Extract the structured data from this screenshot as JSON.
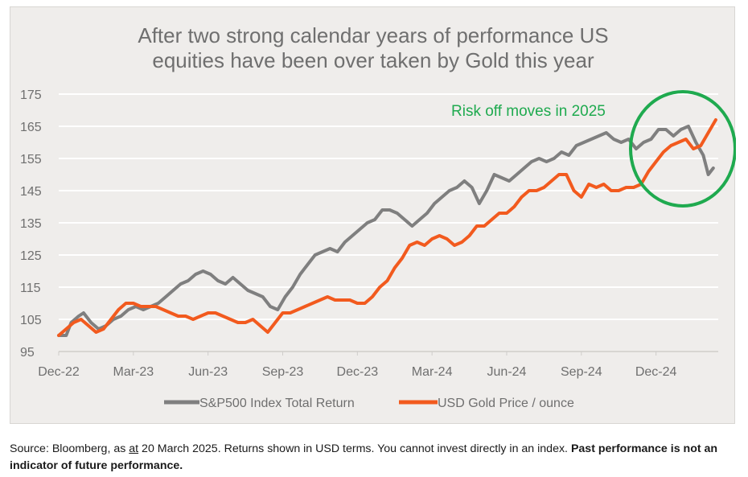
{
  "chart_data": {
    "type": "line",
    "title": [
      "After two strong calendar years of performance US",
      "equities have been over taken by Gold this year"
    ],
    "xlabel": "",
    "ylabel": "",
    "ylim": [
      95,
      175
    ],
    "yticks": [
      "175",
      "165",
      "155",
      "145",
      "135",
      "125",
      "115",
      "105",
      "95"
    ],
    "xticks": [
      "Dec-22",
      "Mar-23",
      "Jun-23",
      "Sep-23",
      "Dec-23",
      "Mar-24",
      "Jun-24",
      "Sep-24",
      "Dec-24"
    ],
    "grid": "horizontal",
    "legend_position": "bottom",
    "annotation": "Risk off moves in 2025",
    "x_month_index_note_free": true,
    "series": [
      {
        "name": "S&P500 Index Total Return",
        "color": "#7f7f7f",
        "points": [
          [
            0,
            100
          ],
          [
            0.3,
            100
          ],
          [
            0.5,
            104
          ],
          [
            0.8,
            106
          ],
          [
            1.0,
            107
          ],
          [
            1.3,
            104
          ],
          [
            1.6,
            102
          ],
          [
            1.9,
            103
          ],
          [
            2.2,
            105
          ],
          [
            2.5,
            106
          ],
          [
            2.8,
            108
          ],
          [
            3.1,
            109
          ],
          [
            3.4,
            108
          ],
          [
            3.7,
            109
          ],
          [
            4.0,
            110
          ],
          [
            4.3,
            112
          ],
          [
            4.6,
            114
          ],
          [
            4.9,
            116
          ],
          [
            5.2,
            117
          ],
          [
            5.5,
            119
          ],
          [
            5.8,
            120
          ],
          [
            6.1,
            119
          ],
          [
            6.4,
            117
          ],
          [
            6.7,
            116
          ],
          [
            7.0,
            118
          ],
          [
            7.3,
            116
          ],
          [
            7.6,
            114
          ],
          [
            7.9,
            113
          ],
          [
            8.2,
            112
          ],
          [
            8.5,
            109
          ],
          [
            8.8,
            108
          ],
          [
            9.1,
            112
          ],
          [
            9.4,
            115
          ],
          [
            9.7,
            119
          ],
          [
            10.0,
            122
          ],
          [
            10.3,
            125
          ],
          [
            10.6,
            126
          ],
          [
            10.9,
            127
          ],
          [
            11.2,
            126
          ],
          [
            11.5,
            129
          ],
          [
            11.8,
            131
          ],
          [
            12.1,
            133
          ],
          [
            12.4,
            135
          ],
          [
            12.7,
            136
          ],
          [
            13.0,
            139
          ],
          [
            13.3,
            139
          ],
          [
            13.6,
            138
          ],
          [
            13.9,
            136
          ],
          [
            14.2,
            134
          ],
          [
            14.5,
            136
          ],
          [
            14.8,
            138
          ],
          [
            15.1,
            141
          ],
          [
            15.4,
            143
          ],
          [
            15.7,
            145
          ],
          [
            16.0,
            146
          ],
          [
            16.3,
            148
          ],
          [
            16.6,
            146
          ],
          [
            16.9,
            141
          ],
          [
            17.2,
            145
          ],
          [
            17.5,
            150
          ],
          [
            17.8,
            149
          ],
          [
            18.1,
            148
          ],
          [
            18.4,
            150
          ],
          [
            18.7,
            152
          ],
          [
            19.0,
            154
          ],
          [
            19.3,
            155
          ],
          [
            19.6,
            154
          ],
          [
            19.9,
            155
          ],
          [
            20.2,
            157
          ],
          [
            20.5,
            156
          ],
          [
            20.8,
            159
          ],
          [
            21.1,
            160
          ],
          [
            21.4,
            161
          ],
          [
            21.7,
            162
          ],
          [
            22.0,
            163
          ],
          [
            22.3,
            161
          ],
          [
            22.6,
            160
          ],
          [
            22.9,
            161
          ],
          [
            23.2,
            158
          ],
          [
            23.5,
            160
          ],
          [
            23.8,
            161
          ],
          [
            24.1,
            164
          ],
          [
            24.4,
            164
          ],
          [
            24.7,
            162
          ],
          [
            25.0,
            164
          ],
          [
            25.3,
            165
          ],
          [
            25.6,
            160
          ],
          [
            25.9,
            156
          ],
          [
            26.1,
            150
          ],
          [
            26.3,
            152
          ]
        ]
      },
      {
        "name": "USD Gold Price / ounce",
        "color": "#f25a1e",
        "points": [
          [
            0,
            100
          ],
          [
            0.3,
            102
          ],
          [
            0.6,
            104
          ],
          [
            0.9,
            105
          ],
          [
            1.2,
            103
          ],
          [
            1.5,
            101
          ],
          [
            1.8,
            102
          ],
          [
            2.1,
            105
          ],
          [
            2.4,
            108
          ],
          [
            2.7,
            110
          ],
          [
            3.0,
            110
          ],
          [
            3.3,
            109
          ],
          [
            3.6,
            109
          ],
          [
            3.9,
            109
          ],
          [
            4.2,
            108
          ],
          [
            4.5,
            107
          ],
          [
            4.8,
            106
          ],
          [
            5.1,
            106
          ],
          [
            5.4,
            105
          ],
          [
            5.7,
            106
          ],
          [
            6.0,
            107
          ],
          [
            6.3,
            107
          ],
          [
            6.6,
            106
          ],
          [
            6.9,
            105
          ],
          [
            7.2,
            104
          ],
          [
            7.5,
            104
          ],
          [
            7.8,
            105
          ],
          [
            8.1,
            103
          ],
          [
            8.4,
            101
          ],
          [
            8.7,
            104
          ],
          [
            9.0,
            107
          ],
          [
            9.3,
            107
          ],
          [
            9.6,
            108
          ],
          [
            9.9,
            109
          ],
          [
            10.2,
            110
          ],
          [
            10.5,
            111
          ],
          [
            10.8,
            112
          ],
          [
            11.1,
            111
          ],
          [
            11.4,
            111
          ],
          [
            11.7,
            111
          ],
          [
            12.0,
            110
          ],
          [
            12.3,
            110
          ],
          [
            12.6,
            112
          ],
          [
            12.9,
            115
          ],
          [
            13.2,
            117
          ],
          [
            13.5,
            121
          ],
          [
            13.8,
            124
          ],
          [
            14.1,
            128
          ],
          [
            14.4,
            129
          ],
          [
            14.7,
            128
          ],
          [
            15.0,
            130
          ],
          [
            15.3,
            131
          ],
          [
            15.6,
            130
          ],
          [
            15.9,
            128
          ],
          [
            16.2,
            129
          ],
          [
            16.5,
            131
          ],
          [
            16.8,
            134
          ],
          [
            17.1,
            134
          ],
          [
            17.4,
            136
          ],
          [
            17.7,
            138
          ],
          [
            18.0,
            138
          ],
          [
            18.3,
            140
          ],
          [
            18.6,
            143
          ],
          [
            18.9,
            145
          ],
          [
            19.2,
            145
          ],
          [
            19.5,
            146
          ],
          [
            19.8,
            148
          ],
          [
            20.1,
            150
          ],
          [
            20.4,
            150
          ],
          [
            20.7,
            145
          ],
          [
            21.0,
            143
          ],
          [
            21.3,
            147
          ],
          [
            21.6,
            146
          ],
          [
            21.9,
            147
          ],
          [
            22.2,
            145
          ],
          [
            22.5,
            145
          ],
          [
            22.8,
            146
          ],
          [
            23.1,
            146
          ],
          [
            23.4,
            147
          ],
          [
            23.7,
            151
          ],
          [
            24.0,
            154
          ],
          [
            24.3,
            157
          ],
          [
            24.6,
            159
          ],
          [
            24.9,
            160
          ],
          [
            25.2,
            161
          ],
          [
            25.5,
            158
          ],
          [
            25.8,
            159
          ],
          [
            26.1,
            163
          ],
          [
            26.4,
            167
          ]
        ]
      }
    ]
  },
  "footer": {
    "prefix": "Source: Bloomberg, as ",
    "at": "at",
    "middle": " 20 March 2025. Returns shown in USD terms. You cannot invest directly in an index. ",
    "bold": "Past performance is not an indicator of future performance."
  },
  "colors": {
    "panel": "#efedeb",
    "gridline": "#ffffff",
    "annotation_circle": "#1faa4f",
    "text": "#6f6f6f"
  }
}
